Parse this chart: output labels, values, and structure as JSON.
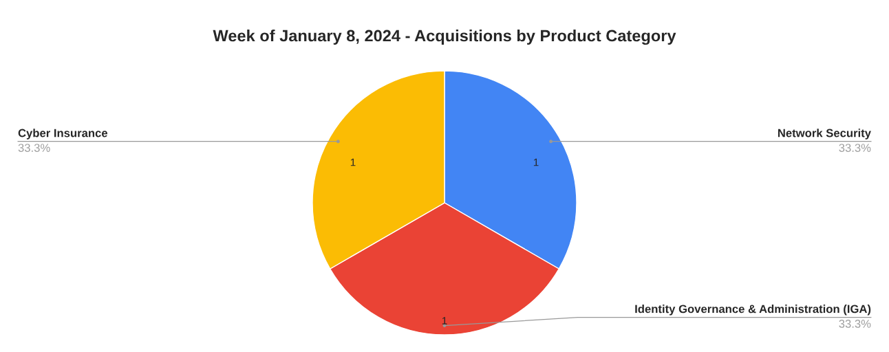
{
  "chart_data": {
    "type": "pie",
    "title": "Week of January 8, 2024 - Acquisitions by Product Category",
    "categories": [
      "Network Security",
      "Identity Governance & Administration (IGA)",
      "Cyber Insurance"
    ],
    "values": [
      1,
      1,
      1
    ],
    "colors": [
      "#4285f4",
      "#ea4335",
      "#fbbc04"
    ],
    "data_labels": true,
    "annotations": [
      {
        "text": "33.3%",
        "x": "Network Security"
      },
      {
        "text": "33.3%",
        "x": "Identity Governance & Administration (IGA)"
      },
      {
        "text": "33.3%",
        "x": "Cyber Insurance"
      }
    ],
    "legend": false
  }
}
